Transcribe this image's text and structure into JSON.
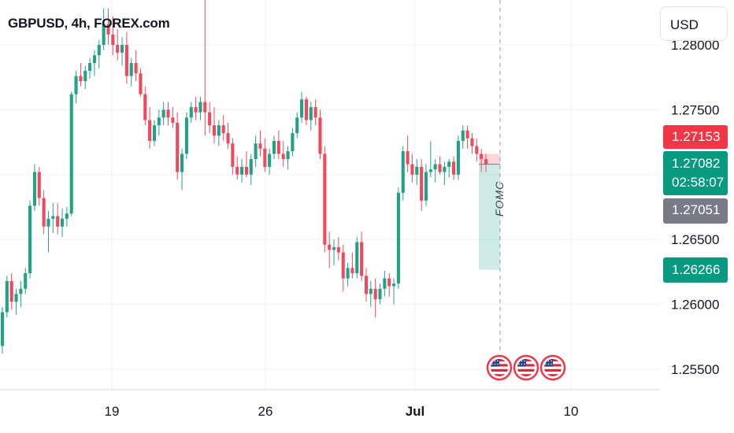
{
  "header": {
    "title": "GBPUSD, 4h, FOREX.com",
    "currency_button": "USD"
  },
  "colors": {
    "up": "#22a186",
    "down": "#ee4a5c",
    "grid": "#eef0f4",
    "axis_text": "#131722"
  },
  "price_tags": {
    "ask": "1.27153",
    "last": "1.27082",
    "countdown": "02:58:07",
    "bid": "1.27051",
    "target": "1.26266"
  },
  "annotation": {
    "event_label": "FOMC",
    "event_icons": [
      "us-flag-icon",
      "us-flag-icon",
      "us-flag-icon"
    ]
  },
  "chart_data": {
    "type": "candlestick",
    "symbol": "GBPUSD",
    "interval": "4h",
    "source": "FOREX.com",
    "y_ticks": [
      "1.28000",
      "1.27500",
      "1.27000",
      "1.26500",
      "1.26000",
      "1.25500"
    ],
    "x_ticks": [
      "19",
      "26",
      "Jul",
      "10"
    ],
    "ylim": [
      1.2535,
      1.2825
    ],
    "position_box": {
      "entry": 1.2708,
      "stop": 1.2716,
      "target": 1.26266
    },
    "candles": [
      [
        1.2568,
        1.2598,
        1.2562,
        1.2594
      ],
      [
        1.2594,
        1.2622,
        1.259,
        1.2618
      ],
      [
        1.2618,
        1.2624,
        1.2596,
        1.2602
      ],
      [
        1.2602,
        1.2612,
        1.2592,
        1.2608
      ],
      [
        1.2608,
        1.2618,
        1.2598,
        1.2612
      ],
      [
        1.2612,
        1.2628,
        1.2608,
        1.2624
      ],
      [
        1.2624,
        1.268,
        1.262,
        1.2676
      ],
      [
        1.2676,
        1.2708,
        1.2672,
        1.2702
      ],
      [
        1.2702,
        1.2706,
        1.2676,
        1.2682
      ],
      [
        1.2682,
        1.2688,
        1.2654,
        1.266
      ],
      [
        1.266,
        1.2672,
        1.264,
        1.2666
      ],
      [
        1.2666,
        1.2678,
        1.2655,
        1.2668
      ],
      [
        1.2668,
        1.2678,
        1.2654,
        1.266
      ],
      [
        1.266,
        1.2674,
        1.2652,
        1.2666
      ],
      [
        1.2666,
        1.2675,
        1.266,
        1.267
      ],
      [
        1.267,
        1.2764,
        1.2668,
        1.2762
      ],
      [
        1.2762,
        1.278,
        1.2755,
        1.2776
      ],
      [
        1.2776,
        1.2786,
        1.2768,
        1.2772
      ],
      [
        1.2772,
        1.2784,
        1.2766,
        1.278
      ],
      [
        1.278,
        1.279,
        1.2774,
        1.2786
      ],
      [
        1.2786,
        1.2796,
        1.2776,
        1.2792
      ],
      [
        1.2792,
        1.2804,
        1.2782,
        1.28
      ],
      [
        1.28,
        1.2828,
        1.2796,
        1.2816
      ],
      [
        1.2816,
        1.2828,
        1.28,
        1.2808
      ],
      [
        1.2808,
        1.2822,
        1.2792,
        1.28
      ],
      [
        1.28,
        1.2812,
        1.2788,
        1.2794
      ],
      [
        1.2794,
        1.2806,
        1.2784,
        1.28
      ],
      [
        1.28,
        1.281,
        1.277,
        1.2776
      ],
      [
        1.2776,
        1.279,
        1.2768,
        1.2786
      ],
      [
        1.2786,
        1.2796,
        1.2772,
        1.2778
      ],
      [
        1.2778,
        1.2782,
        1.276,
        1.2762
      ],
      [
        1.2762,
        1.2768,
        1.2738,
        1.2742
      ],
      [
        1.2742,
        1.2752,
        1.272,
        1.2726
      ],
      [
        1.2726,
        1.2742,
        1.2722,
        1.2738
      ],
      [
        1.2738,
        1.275,
        1.273,
        1.2744
      ],
      [
        1.2744,
        1.2756,
        1.2738,
        1.275
      ],
      [
        1.275,
        1.2756,
        1.2738,
        1.2744
      ],
      [
        1.2744,
        1.2752,
        1.2736,
        1.274
      ],
      [
        1.274,
        1.2748,
        1.2696,
        1.2702
      ],
      [
        1.2702,
        1.272,
        1.2688,
        1.2716
      ],
      [
        1.2716,
        1.2748,
        1.2712,
        1.2744
      ],
      [
        1.2744,
        1.2756,
        1.274,
        1.2752
      ],
      [
        1.2752,
        1.276,
        1.2742,
        1.2748
      ],
      [
        1.2748,
        1.276,
        1.2742,
        1.2756
      ],
      [
        1.2756,
        1.284,
        1.273,
        1.2748
      ],
      [
        1.2748,
        1.2756,
        1.2732,
        1.2738
      ],
      [
        1.2738,
        1.2752,
        1.2724,
        1.273
      ],
      [
        1.273,
        1.2742,
        1.2722,
        1.2738
      ],
      [
        1.2738,
        1.2746,
        1.2726,
        1.2732
      ],
      [
        1.2732,
        1.274,
        1.272,
        1.2724
      ],
      [
        1.2724,
        1.2728,
        1.27,
        1.2706
      ],
      [
        1.2706,
        1.2714,
        1.2696,
        1.27
      ],
      [
        1.27,
        1.2712,
        1.2694,
        1.2706
      ],
      [
        1.2706,
        1.2718,
        1.2698,
        1.27
      ],
      [
        1.27,
        1.2716,
        1.2692,
        1.2712
      ],
      [
        1.2712,
        1.273,
        1.2706,
        1.2724
      ],
      [
        1.2724,
        1.2734,
        1.2714,
        1.272
      ],
      [
        1.272,
        1.2728,
        1.2702,
        1.2706
      ],
      [
        1.2706,
        1.272,
        1.27,
        1.2716
      ],
      [
        1.2716,
        1.273,
        1.2712,
        1.2726
      ],
      [
        1.2726,
        1.2734,
        1.2712,
        1.2716
      ],
      [
        1.2716,
        1.2726,
        1.2706,
        1.2712
      ],
      [
        1.2712,
        1.2722,
        1.2704,
        1.2718
      ],
      [
        1.2718,
        1.2736,
        1.2714,
        1.2732
      ],
      [
        1.2732,
        1.2748,
        1.2728,
        1.2744
      ],
      [
        1.2744,
        1.2764,
        1.274,
        1.2758
      ],
      [
        1.2758,
        1.276,
        1.2738,
        1.2742
      ],
      [
        1.2742,
        1.2756,
        1.2734,
        1.2752
      ],
      [
        1.2752,
        1.2758,
        1.2738,
        1.2744
      ],
      [
        1.2744,
        1.275,
        1.2712,
        1.2716
      ],
      [
        1.2716,
        1.2722,
        1.264,
        1.2646
      ],
      [
        1.2646,
        1.2656,
        1.2628,
        1.2642
      ],
      [
        1.2642,
        1.265,
        1.263,
        1.2644
      ],
      [
        1.2644,
        1.2652,
        1.2634,
        1.264
      ],
      [
        1.264,
        1.2646,
        1.261,
        1.262
      ],
      [
        1.262,
        1.2632,
        1.2614,
        1.2628
      ],
      [
        1.2628,
        1.264,
        1.262,
        1.2624
      ],
      [
        1.2624,
        1.2652,
        1.262,
        1.2648
      ],
      [
        1.2648,
        1.2656,
        1.2618,
        1.2622
      ],
      [
        1.2622,
        1.2628,
        1.2602,
        1.2608
      ],
      [
        1.2608,
        1.2618,
        1.2598,
        1.2612
      ],
      [
        1.2612,
        1.262,
        1.259,
        1.2604
      ],
      [
        1.2604,
        1.2616,
        1.26,
        1.2612
      ],
      [
        1.2612,
        1.2626,
        1.2606,
        1.262
      ],
      [
        1.262,
        1.2624,
        1.2606,
        1.2614
      ],
      [
        1.2614,
        1.262,
        1.26,
        1.2616
      ],
      [
        1.2616,
        1.269,
        1.2612,
        1.2686
      ],
      [
        1.2686,
        1.2722,
        1.268,
        1.2718
      ],
      [
        1.2718,
        1.273,
        1.2702,
        1.2708
      ],
      [
        1.2708,
        1.2716,
        1.2694,
        1.27
      ],
      [
        1.27,
        1.2712,
        1.2692,
        1.2706
      ],
      [
        1.2706,
        1.2712,
        1.2672,
        1.268
      ],
      [
        1.268,
        1.2708,
        1.2676,
        1.2702
      ],
      [
        1.2702,
        1.2726,
        1.2698,
        1.2704
      ],
      [
        1.2704,
        1.2712,
        1.2694,
        1.2708
      ],
      [
        1.2708,
        1.2714,
        1.27,
        1.2702
      ],
      [
        1.2702,
        1.271,
        1.2692,
        1.2706
      ],
      [
        1.2706,
        1.2712,
        1.2698,
        1.271
      ],
      [
        1.271,
        1.2714,
        1.2696,
        1.27
      ],
      [
        1.27,
        1.273,
        1.2696,
        1.2726
      ],
      [
        1.2726,
        1.2738,
        1.272,
        1.2734
      ],
      [
        1.2734,
        1.2738,
        1.272,
        1.2728
      ],
      [
        1.2728,
        1.2732,
        1.2716,
        1.2722
      ],
      [
        1.2722,
        1.2728,
        1.271,
        1.2716
      ],
      [
        1.2716,
        1.272,
        1.2702,
        1.2712
      ],
      [
        1.2712,
        1.2716,
        1.2702,
        1.2708
      ]
    ]
  }
}
